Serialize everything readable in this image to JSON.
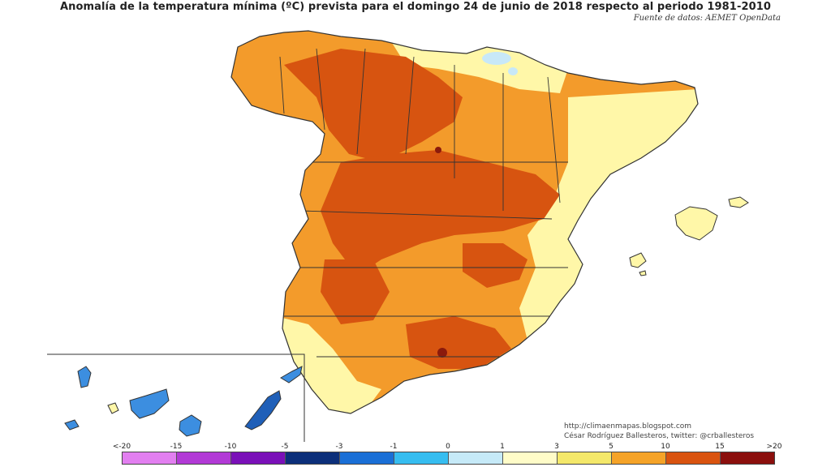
{
  "title": "Anomalía de la temperatura mínima (ºC) prevista para el domingo 24 de junio de 2018 respecto al periodo 1981-2010",
  "source": "Fuente de datos: AEMET OpenData",
  "credits": {
    "url": "http://climaenmapas.blogspot.com",
    "author": "César Rodríguez Ballesteros, twitter: @crballesteros"
  },
  "legend": {
    "ticks": [
      "<-20",
      "-15",
      "-10",
      "-5",
      "-3",
      "-1",
      "0",
      "1",
      "3",
      "5",
      "10",
      "15",
      ">20"
    ],
    "colors": [
      "#e27ff0",
      "#b23ad6",
      "#7a10b8",
      "#0c2f7a",
      "#1a6fd6",
      "#36bdf0",
      "#c6eaf8",
      "#fffcc8",
      "#f4e86a",
      "#f5a328",
      "#d9530f",
      "#8b0f0d",
      "#6b3a10"
    ]
  },
  "map": {
    "region": "Spain",
    "palette": {
      "pale_yellow": "#fff7a8",
      "orange": "#f39b2b",
      "dark_orange": "#d75410",
      "dark_red": "#8b1a0c",
      "light_blue": "#c8e8f8",
      "blue": "#3c8ee0",
      "dark_blue": "#1f5fb8"
    }
  }
}
